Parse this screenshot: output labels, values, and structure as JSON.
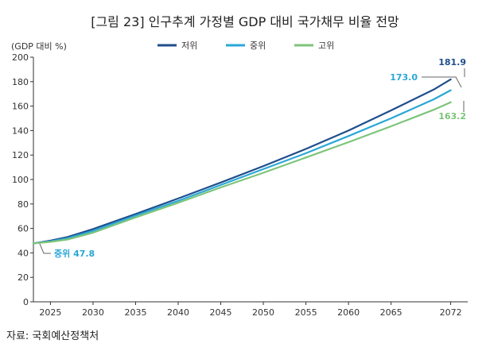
{
  "figure": {
    "title": "[그림 23] 인구추계 가정별 GDP 대비 국가채무 비율 전망",
    "source": "자료: 국회예산정책처"
  },
  "colors": {
    "low": "#1f4e8c",
    "mid": "#2aa7d6",
    "high": "#7cc47a",
    "axis": "#333333"
  },
  "chart_data": {
    "type": "line",
    "ylabel": "(GDP 대비 %)",
    "ylim": [
      0,
      200
    ],
    "yticks": [
      0,
      20,
      40,
      60,
      80,
      100,
      120,
      140,
      160,
      180,
      200
    ],
    "xlim": [
      2023,
      2074
    ],
    "xticks": [
      2025,
      2030,
      2035,
      2040,
      2045,
      2050,
      2055,
      2060,
      2065,
      2072
    ],
    "grid": false,
    "legend_position": "top-center",
    "x": [
      2023,
      2025,
      2027,
      2030,
      2035,
      2040,
      2045,
      2050,
      2055,
      2060,
      2065,
      2070,
      2072
    ],
    "series": [
      {
        "name": "저위",
        "color": "#1f4e8c",
        "values": [
          47.8,
          50.0,
          53.0,
          59.5,
          71.8,
          84.5,
          97.5,
          111.0,
          125.0,
          140.0,
          156.5,
          173.5,
          181.9
        ]
      },
      {
        "name": "중위",
        "color": "#2aa7d6",
        "values": [
          47.8,
          49.5,
          52.0,
          58.0,
          70.5,
          82.5,
          95.5,
          108.5,
          121.5,
          135.5,
          150.0,
          165.5,
          173.0
        ]
      },
      {
        "name": "고위",
        "color": "#7cc47a",
        "values": [
          47.8,
          49.0,
          51.0,
          56.5,
          69.0,
          81.0,
          93.5,
          105.5,
          118.0,
          130.5,
          143.5,
          157.0,
          163.2
        ]
      }
    ],
    "annotations": [
      {
        "text": "181.9",
        "series": "저위",
        "x": 2072,
        "y": 181.9,
        "color": "#1f4e8c"
      },
      {
        "text": "173.0",
        "series": "중위",
        "x": 2072,
        "y": 173.0,
        "color": "#2aa7d6"
      },
      {
        "text": "163.2",
        "series": "고위",
        "x": 2072,
        "y": 163.2,
        "color": "#7cc47a"
      },
      {
        "text": "중위 47.8",
        "series": "중위",
        "x": 2023,
        "y": 47.8,
        "color": "#2aa7d6"
      }
    ]
  }
}
